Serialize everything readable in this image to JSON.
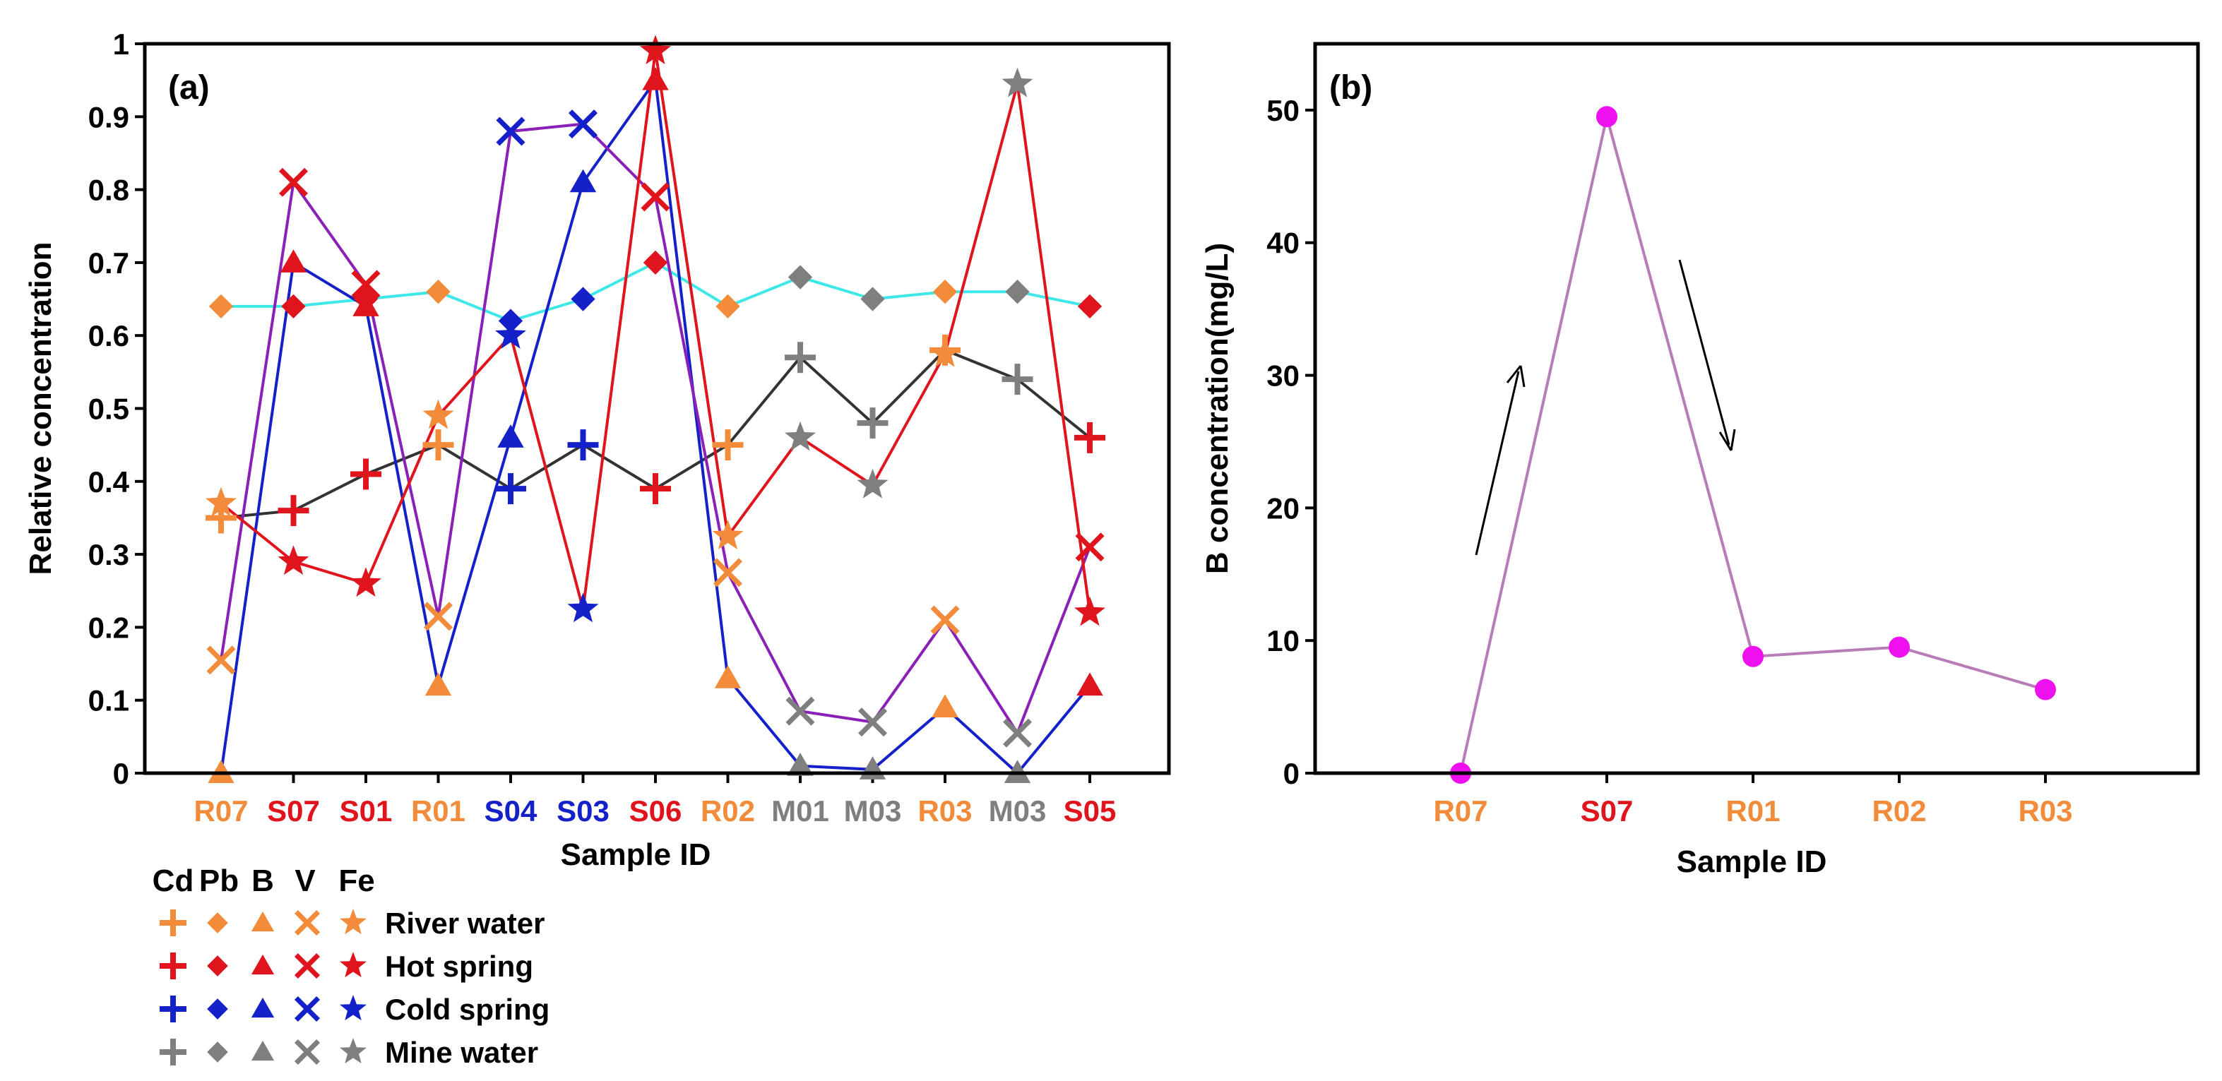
{
  "colors": {
    "river": "#f28c3b",
    "hot": "#e0141c",
    "cold": "#1420c8",
    "mine": "#7f7f7f",
    "line_b": "#1420c8",
    "line_fe": "#e0141c",
    "line_v": "#8a20b8",
    "line_pb": "#3fe8e8",
    "line_cd": "#333333",
    "panel_b_line": "#b87cb8",
    "panel_b_marker": "#ee10ee"
  },
  "chart_data": [
    {
      "id": "a",
      "type": "line",
      "panel_label": "(a)",
      "xlabel": "Sample ID",
      "ylabel": "Relative concentration",
      "ylim": [
        0,
        1
      ],
      "yticks": [
        "0",
        "0.1",
        "0.2",
        "0.3",
        "0.4",
        "0.5",
        "0.6",
        "0.7",
        "0.8",
        "0.9",
        "1"
      ],
      "categories": [
        "R07",
        "S07",
        "S01",
        "R01",
        "S04",
        "S03",
        "S06",
        "R02",
        "M01",
        "M03",
        "R03",
        "M03",
        "S05"
      ],
      "category_types": [
        "river",
        "hot",
        "hot",
        "river",
        "cold",
        "cold",
        "hot",
        "river",
        "mine",
        "mine",
        "river",
        "mine",
        "hot"
      ],
      "series": [
        {
          "name": "Cd",
          "marker": "plus",
          "line_color_key": "line_cd",
          "values": [
            0.35,
            0.36,
            0.41,
            0.45,
            0.39,
            0.45,
            0.39,
            0.45,
            0.57,
            0.48,
            0.58,
            0.54,
            0.46
          ]
        },
        {
          "name": "Pb",
          "marker": "diamond",
          "line_color_key": "line_pb",
          "values": [
            0.64,
            0.64,
            0.65,
            0.66,
            0.62,
            0.65,
            0.7,
            0.64,
            0.68,
            0.65,
            0.66,
            0.66,
            0.64
          ]
        },
        {
          "name": "B",
          "marker": "triangle",
          "line_color_key": "line_b",
          "values": [
            0.0,
            0.7,
            0.64,
            0.12,
            0.46,
            0.81,
            0.95,
            0.13,
            0.01,
            0.005,
            0.09,
            0.0,
            0.12
          ]
        },
        {
          "name": "V",
          "marker": "cross",
          "line_color_key": "line_v",
          "values": [
            0.155,
            0.81,
            0.67,
            0.215,
            0.88,
            0.89,
            0.79,
            0.275,
            0.085,
            0.07,
            0.21,
            0.055,
            0.31
          ]
        },
        {
          "name": "Fe",
          "marker": "star",
          "line_color_key": "line_fe",
          "values": [
            0.37,
            0.29,
            0.26,
            0.49,
            0.6,
            0.225,
            0.99,
            0.325,
            0.46,
            0.395,
            0.575,
            0.945,
            0.22
          ]
        }
      ]
    },
    {
      "id": "b",
      "type": "line",
      "panel_label": "(b)",
      "xlabel": "Sample ID",
      "ylabel": "B concentration(mg/L)",
      "ylim": [
        0,
        55
      ],
      "yticks": [
        "0",
        "10",
        "20",
        "30",
        "40",
        "50"
      ],
      "categories": [
        "R07",
        "S07",
        "R01",
        "R02",
        "R03"
      ],
      "category_types": [
        "river",
        "hot",
        "river",
        "river",
        "river"
      ],
      "values": [
        0.0,
        49.5,
        8.8,
        9.5,
        6.3
      ]
    }
  ],
  "legend": {
    "columns": [
      "Cd",
      "Pb",
      "B",
      "V",
      "Fe"
    ],
    "rows": [
      {
        "label": "River water",
        "color_key": "river"
      },
      {
        "label": "Hot spring",
        "color_key": "hot"
      },
      {
        "label": "Cold spring",
        "color_key": "cold"
      },
      {
        "label": "Mine water",
        "color_key": "mine"
      }
    ]
  }
}
